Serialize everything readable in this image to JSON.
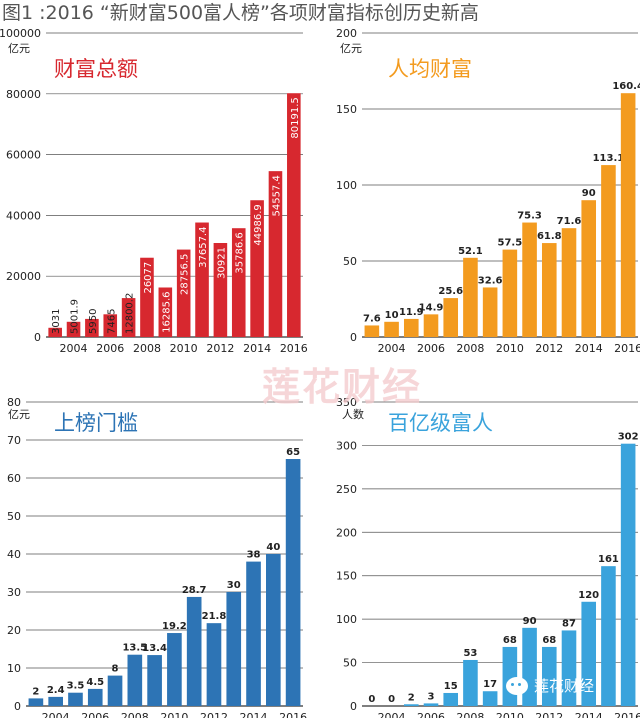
{
  "title": "图1 :2016 “新财富500富人榜”各项财富指标创历史新高",
  "watermark": "莲花财经",
  "wechat_label": "莲花财经",
  "chart_data": [
    {
      "id": "wealth-total",
      "type": "bar",
      "title": "财富总额",
      "unit": "亿元",
      "color": "#d7282f",
      "ylim": [
        0,
        100000
      ],
      "yticks": [
        0,
        20000,
        40000,
        60000,
        80000,
        100000
      ],
      "label_style": "inside-vertical",
      "x": [
        2003,
        2004,
        2005,
        2006,
        2007,
        2008,
        2009,
        2010,
        2011,
        2012,
        2013,
        2014,
        2015,
        2016
      ],
      "xtick_labels": [
        "2004",
        "2006",
        "2008",
        "2010",
        "2012",
        "2014",
        "2016"
      ],
      "values": [
        3031,
        5001.9,
        5950,
        7465,
        12800.2,
        26077,
        16285.6,
        28756.5,
        37657.4,
        30921,
        35786.6,
        44986.9,
        54557.4,
        80191.5
      ],
      "labels": [
        "3031",
        "5001.9",
        "5950",
        "7465",
        "12800.2",
        "26077",
        "16285.6",
        "28756.5",
        "37657.4",
        "30921",
        "35786.6",
        "44986.9",
        "54557.4",
        "80191.5"
      ]
    },
    {
      "id": "wealth-per-capita",
      "type": "bar",
      "title": "人均财富",
      "unit": "亿元",
      "color": "#f39b1f",
      "ylim": [
        0,
        200
      ],
      "yticks": [
        0,
        50,
        100,
        150,
        200
      ],
      "label_style": "above",
      "x": [
        2003,
        2004,
        2005,
        2006,
        2007,
        2008,
        2009,
        2010,
        2011,
        2012,
        2013,
        2014,
        2015,
        2016
      ],
      "xtick_labels": [
        "2004",
        "2006",
        "2008",
        "2010",
        "2012",
        "2014",
        "2016"
      ],
      "values": [
        7.6,
        10,
        11.9,
        14.9,
        25.6,
        52.1,
        32.6,
        57.5,
        75.3,
        61.8,
        71.6,
        90,
        113.1,
        160.4
      ],
      "labels": [
        "7.6",
        "10",
        "11.9",
        "14.9",
        "25.6",
        "52.1",
        "32.6",
        "57.5",
        "75.3",
        "61.8",
        "71.6",
        "90",
        "113.1",
        "160.4"
      ]
    },
    {
      "id": "list-threshold",
      "type": "bar",
      "title": "上榜门槛",
      "unit": "亿元",
      "color": "#2d74b5",
      "ylim": [
        0,
        80
      ],
      "yticks": [
        0,
        10,
        20,
        30,
        40,
        50,
        60,
        70,
        80
      ],
      "label_style": "above",
      "x": [
        2003,
        2004,
        2005,
        2006,
        2007,
        2008,
        2009,
        2010,
        2011,
        2012,
        2013,
        2014,
        2015,
        2016
      ],
      "xtick_labels": [
        "2004",
        "2006",
        "2008",
        "2010",
        "2012",
        "2014",
        "2016"
      ],
      "values": [
        2,
        2.4,
        3.5,
        4.5,
        8,
        13.5,
        13.4,
        19.2,
        28.7,
        21.8,
        30,
        38,
        40,
        65
      ],
      "labels": [
        "2",
        "2.4",
        "3.5",
        "4.5",
        "8",
        "13.5",
        "13.4",
        "19.2",
        "28.7",
        "21.8",
        "30",
        "38",
        "40",
        "65"
      ]
    },
    {
      "id": "ten-billionaires",
      "type": "bar",
      "title": "百亿级富人",
      "unit": "人数",
      "color": "#3aa3dc",
      "ylim": [
        0,
        350
      ],
      "yticks": [
        0,
        50,
        100,
        150,
        200,
        250,
        300,
        350
      ],
      "label_style": "above",
      "x": [
        2003,
        2004,
        2005,
        2006,
        2007,
        2008,
        2009,
        2010,
        2011,
        2012,
        2013,
        2014,
        2015,
        2016
      ],
      "xtick_labels": [
        "2004",
        "2006",
        "2008",
        "2010",
        "2012",
        "2014",
        "2016"
      ],
      "values": [
        0,
        0,
        2,
        3,
        15,
        53,
        17,
        68,
        90,
        68,
        87,
        120,
        161,
        302
      ],
      "labels": [
        "0",
        "0",
        "2",
        "3",
        "15",
        "53",
        "17",
        "68",
        "90",
        "68",
        "87",
        "120",
        "161",
        "302"
      ]
    }
  ]
}
